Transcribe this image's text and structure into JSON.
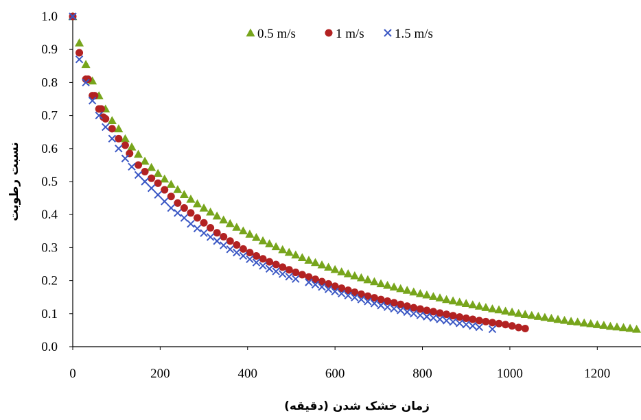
{
  "chart_data": {
    "type": "scatter",
    "xlabel": "زمان خشک شدن (دقیقه)",
    "ylabel": "نسبت رطوبت",
    "xlim": [
      0,
      1300
    ],
    "ylim": [
      0,
      1.0
    ],
    "x_ticks": [
      0,
      200,
      400,
      600,
      800,
      1000,
      1200
    ],
    "y_ticks": [
      0,
      0.1,
      0.2,
      0.3,
      0.4,
      0.5,
      0.6,
      0.7,
      0.8,
      0.9,
      1.0
    ],
    "x_tick_labels": [
      "0",
      "200",
      "400",
      "600",
      "800",
      "1000",
      "1200"
    ],
    "y_tick_labels": [
      "0.0",
      "0.1",
      "0.2",
      "0.3",
      "0.4",
      "0.5",
      "0.6",
      "0.7",
      "0.8",
      "0.9",
      "1.0"
    ],
    "grid": false,
    "legend_position": "top-center",
    "series": [
      {
        "name": "0.5 m/s",
        "marker": "triangle",
        "color": "#77a51c",
        "x": [
          0,
          15,
          30,
          45,
          60,
          75,
          90,
          105,
          120,
          135,
          150,
          165,
          180,
          195,
          210,
          225,
          240,
          255,
          270,
          285,
          300,
          315,
          330,
          345,
          360,
          375,
          390,
          405,
          420,
          435,
          450,
          465,
          480,
          495,
          510,
          525,
          540,
          555,
          570,
          585,
          600,
          615,
          630,
          645,
          660,
          675,
          690,
          705,
          720,
          735,
          750,
          765,
          780,
          795,
          810,
          825,
          840,
          855,
          870,
          885,
          900,
          915,
          930,
          945,
          960,
          975,
          990,
          1005,
          1020,
          1035,
          1050,
          1065,
          1080,
          1095,
          1110,
          1125,
          1140,
          1155,
          1170,
          1185,
          1200,
          1215,
          1230,
          1245,
          1260,
          1275,
          1290
        ],
        "y": [
          1.0,
          0.92,
          0.855,
          0.805,
          0.76,
          0.72,
          0.685,
          0.66,
          0.63,
          0.605,
          0.583,
          0.562,
          0.543,
          0.525,
          0.508,
          0.492,
          0.476,
          0.461,
          0.447,
          0.433,
          0.42,
          0.408,
          0.396,
          0.384,
          0.373,
          0.362,
          0.351,
          0.341,
          0.331,
          0.321,
          0.312,
          0.303,
          0.294,
          0.286,
          0.278,
          0.27,
          0.262,
          0.255,
          0.248,
          0.241,
          0.234,
          0.227,
          0.221,
          0.215,
          0.209,
          0.203,
          0.197,
          0.191,
          0.186,
          0.181,
          0.176,
          0.171,
          0.166,
          0.161,
          0.157,
          0.152,
          0.148,
          0.143,
          0.139,
          0.135,
          0.131,
          0.127,
          0.123,
          0.119,
          0.115,
          0.112,
          0.108,
          0.105,
          0.101,
          0.098,
          0.095,
          0.092,
          0.089,
          0.086,
          0.083,
          0.08,
          0.077,
          0.075,
          0.072,
          0.07,
          0.067,
          0.065,
          0.062,
          0.06,
          0.058,
          0.056,
          0.053
        ]
      },
      {
        "name": "1 m/s",
        "marker": "circle",
        "color": "#b22222",
        "x": [
          0,
          15,
          30,
          35,
          45,
          50,
          60,
          65,
          70,
          75,
          90,
          105,
          120,
          130,
          150,
          165,
          180,
          195,
          210,
          225,
          240,
          255,
          270,
          285,
          300,
          315,
          330,
          345,
          360,
          375,
          390,
          405,
          420,
          435,
          450,
          465,
          480,
          495,
          510,
          525,
          540,
          555,
          570,
          585,
          600,
          615,
          630,
          645,
          660,
          675,
          690,
          705,
          720,
          735,
          750,
          765,
          780,
          795,
          810,
          825,
          840,
          855,
          870,
          885,
          900,
          915,
          930,
          945,
          960,
          975,
          990,
          1005,
          1020,
          1035
        ],
        "y": [
          1.0,
          0.89,
          0.81,
          0.81,
          0.76,
          0.76,
          0.72,
          0.72,
          0.695,
          0.69,
          0.66,
          0.63,
          0.61,
          0.585,
          0.55,
          0.53,
          0.51,
          0.495,
          0.475,
          0.455,
          0.435,
          0.42,
          0.405,
          0.39,
          0.375,
          0.36,
          0.345,
          0.333,
          0.32,
          0.308,
          0.296,
          0.285,
          0.275,
          0.266,
          0.257,
          0.249,
          0.241,
          0.233,
          0.225,
          0.218,
          0.211,
          0.204,
          0.197,
          0.19,
          0.183,
          0.177,
          0.171,
          0.165,
          0.159,
          0.153,
          0.148,
          0.143,
          0.138,
          0.133,
          0.128,
          0.123,
          0.118,
          0.114,
          0.11,
          0.106,
          0.102,
          0.098,
          0.094,
          0.09,
          0.086,
          0.083,
          0.079,
          0.076,
          0.073,
          0.07,
          0.067,
          0.063,
          0.058,
          0.055
        ]
      },
      {
        "name": "1.5 m/s",
        "marker": "x",
        "color": "#3a57c4",
        "x": [
          0,
          15,
          30,
          45,
          60,
          75,
          90,
          105,
          120,
          135,
          150,
          165,
          180,
          195,
          210,
          225,
          240,
          255,
          270,
          285,
          300,
          315,
          330,
          345,
          360,
          375,
          390,
          405,
          420,
          435,
          450,
          465,
          480,
          495,
          510,
          540,
          555,
          570,
          585,
          600,
          615,
          630,
          645,
          660,
          675,
          690,
          705,
          720,
          735,
          750,
          765,
          780,
          795,
          810,
          825,
          840,
          855,
          870,
          885,
          900,
          915,
          930,
          960
        ],
        "y": [
          1.0,
          0.87,
          0.8,
          0.745,
          0.7,
          0.665,
          0.63,
          0.6,
          0.57,
          0.545,
          0.52,
          0.5,
          0.48,
          0.46,
          0.44,
          0.42,
          0.405,
          0.39,
          0.372,
          0.358,
          0.344,
          0.332,
          0.32,
          0.307,
          0.295,
          0.285,
          0.275,
          0.265,
          0.255,
          0.245,
          0.236,
          0.228,
          0.22,
          0.212,
          0.205,
          0.195,
          0.188,
          0.181,
          0.174,
          0.167,
          0.161,
          0.155,
          0.149,
          0.143,
          0.137,
          0.131,
          0.125,
          0.12,
          0.115,
          0.11,
          0.105,
          0.1,
          0.095,
          0.091,
          0.087,
          0.083,
          0.079,
          0.075,
          0.071,
          0.067,
          0.063,
          0.059,
          0.053
        ]
      }
    ]
  }
}
